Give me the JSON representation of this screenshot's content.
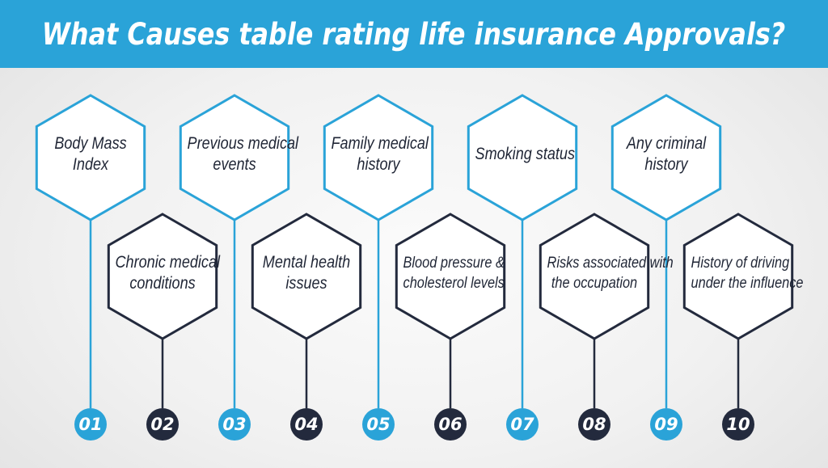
{
  "title": "What Causes table rating life insurance Approvals?",
  "colors": {
    "header": "#2aa3d8",
    "blue": "#2aa3d8",
    "dark": "#232a3d"
  },
  "items": [
    {
      "num": "01",
      "lines": [
        "Body Mass",
        "Index"
      ],
      "color": "blue"
    },
    {
      "num": "02",
      "lines": [
        "Chronic medical",
        "conditions"
      ],
      "color": "dark"
    },
    {
      "num": "03",
      "lines": [
        "Previous medical",
        "events"
      ],
      "color": "blue"
    },
    {
      "num": "04",
      "lines": [
        "Mental health",
        "issues"
      ],
      "color": "dark"
    },
    {
      "num": "05",
      "lines": [
        "Family medical",
        "history"
      ],
      "color": "blue"
    },
    {
      "num": "06",
      "lines": [
        "Blood pressure &",
        "cholesterol levels"
      ],
      "color": "dark"
    },
    {
      "num": "07",
      "lines": [
        "Smoking status"
      ],
      "color": "blue"
    },
    {
      "num": "08",
      "lines": [
        "Risks associated with",
        "the occupation"
      ],
      "color": "dark"
    },
    {
      "num": "09",
      "lines": [
        "Any criminal",
        "history"
      ],
      "color": "blue"
    },
    {
      "num": "10",
      "lines": [
        "History of driving",
        "under the influence"
      ],
      "color": "dark"
    }
  ]
}
